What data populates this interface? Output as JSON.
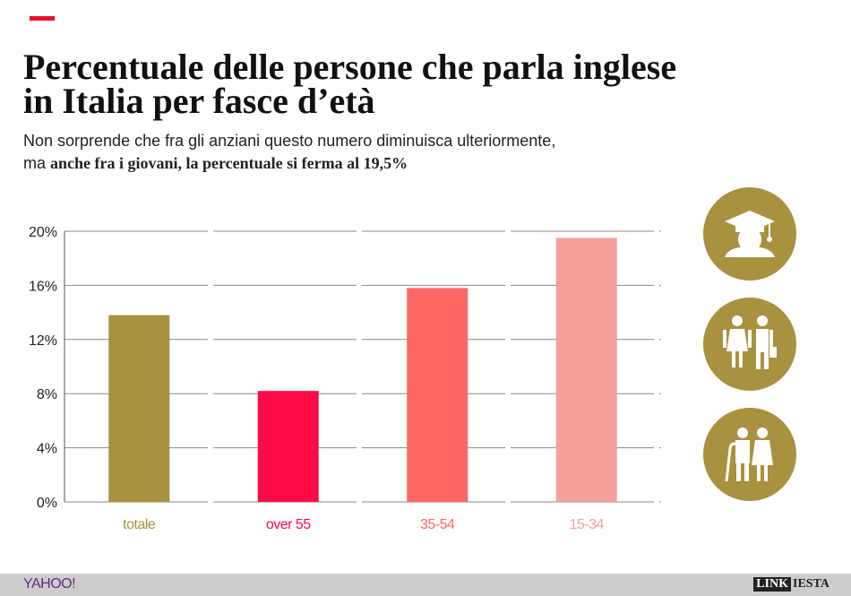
{
  "header": {
    "title": "Percentuale delle persone che parla inglese in Italia per fasce d’età",
    "subtitle_line1": "Non sorprende che fra gli anziani questo numero diminuisca ulteriormente,",
    "subtitle_prefix": "ma ",
    "subtitle_emphasis": "anche fra i giovani, la percentuale si ferma al 19,5%"
  },
  "colors": {
    "accent_red": "#e8112d",
    "icon_gold": "#a8913f"
  },
  "icons": [
    "graduate-icon",
    "adult-couple-icon",
    "elderly-couple-icon"
  ],
  "chart_data": {
    "type": "bar",
    "categories": [
      "totale",
      "over 55",
      "35-54",
      "15-34"
    ],
    "values": [
      13.8,
      8.2,
      15.8,
      19.5
    ],
    "colors": [
      "#a8913f",
      "#ff0a47",
      "#ff6666",
      "#f5a09a"
    ],
    "title": "Percentuale delle persone che parla inglese in Italia per fasce d’età",
    "ylim": [
      0,
      20
    ],
    "yticks": [
      0,
      4,
      8,
      12,
      16,
      20
    ],
    "ytick_labels": [
      "0%",
      "4%",
      "8%",
      "12%",
      "16%",
      "20%"
    ],
    "grid": true,
    "legend": "none"
  },
  "footer": {
    "left_logo": "YAHOO!",
    "right_logo_part1": "LINK",
    "right_logo_part2": "IESTA"
  }
}
